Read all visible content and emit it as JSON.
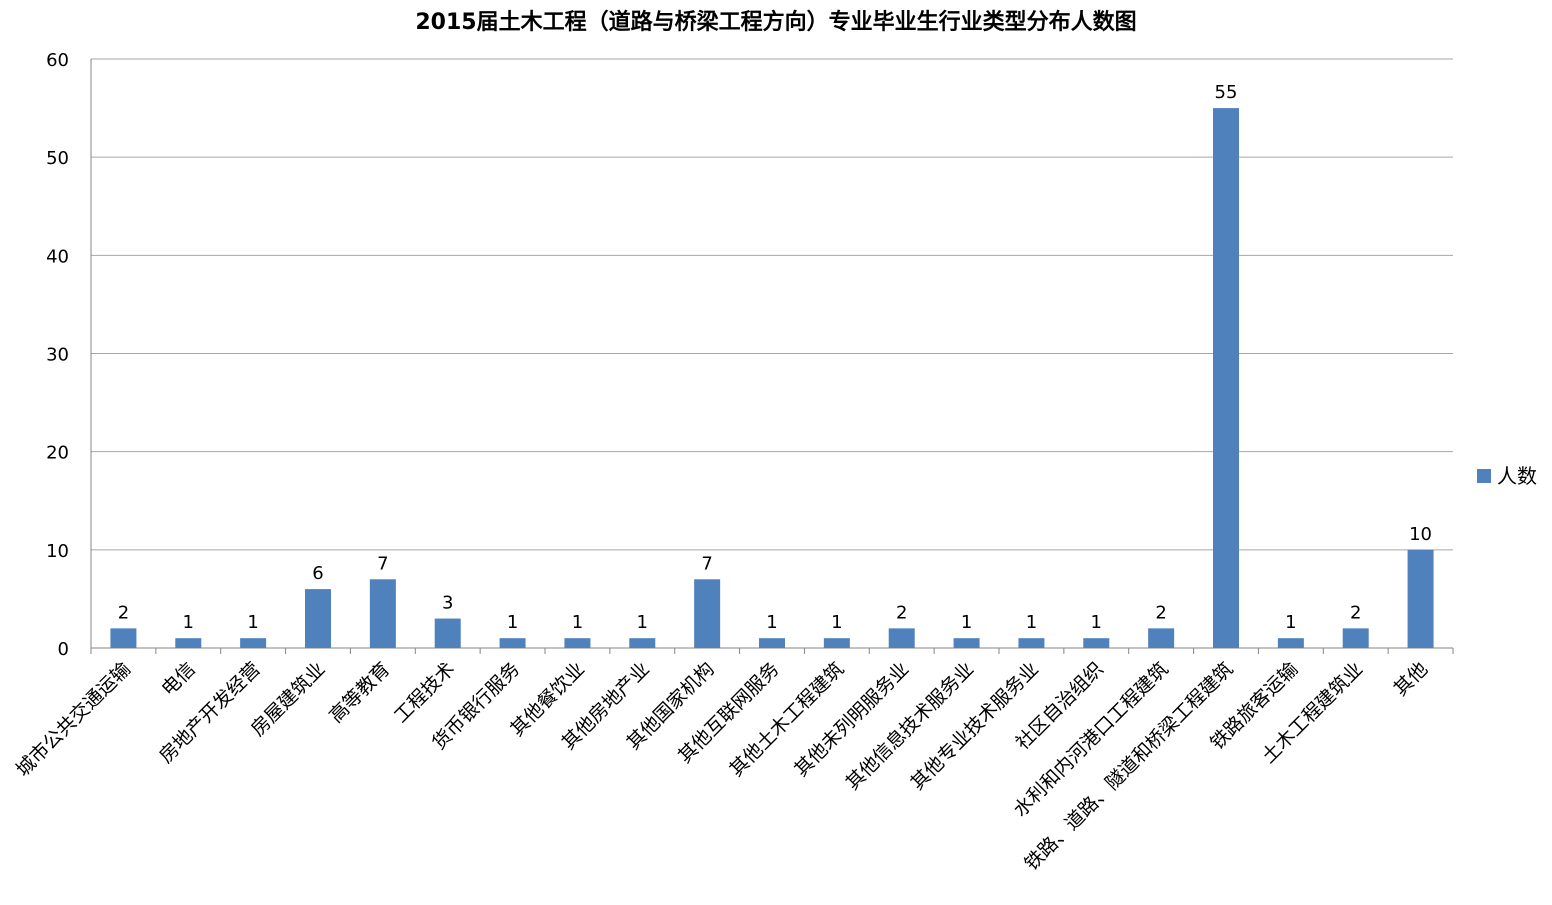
{
  "chart_data": {
    "type": "bar",
    "title": "2015届土木工程（道路与桥梁工程方向）专业毕业生行业类型分布人数图",
    "categories": [
      "城市公共交通运输",
      "电信",
      "房地产开发经营",
      "房屋建筑业",
      "高等教育",
      "工程技术",
      "货币银行服务",
      "其他餐饮业",
      "其他房地产业",
      "其他国家机构",
      "其他互联网服务",
      "其他土木工程建筑",
      "其他未列明服务业",
      "其他信息技术服务业",
      "其他专业技术服务业",
      "社区自治组织",
      "水利和内河港口工程建筑",
      "铁路、道路、隧道和桥梁工程建筑",
      "铁路旅客运输",
      "土木工程建筑业",
      "其他"
    ],
    "series": [
      {
        "name": "人数",
        "values": [
          2,
          1,
          1,
          6,
          7,
          3,
          1,
          1,
          1,
          7,
          1,
          1,
          2,
          1,
          1,
          1,
          2,
          55,
          1,
          2,
          10
        ],
        "color": "#4f81bd"
      }
    ],
    "ylim": [
      0,
      60
    ],
    "yticks": [
      0,
      10,
      20,
      30,
      40,
      50,
      60
    ],
    "grid": true,
    "legend": "right",
    "data_labels": true
  }
}
